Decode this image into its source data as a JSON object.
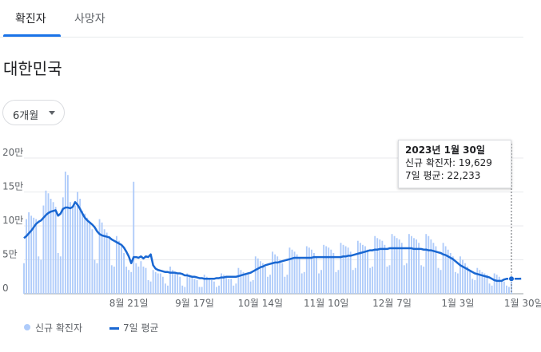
{
  "tabs": [
    {
      "label": "확진자",
      "active": true
    },
    {
      "label": "사망자",
      "active": false
    }
  ],
  "region": "대한민국",
  "period_select": {
    "selected": "6개월"
  },
  "tooltip": {
    "date": "2023년 1월 30일",
    "new_cases_line": "신규 확진자: 19,629",
    "avg_line": "7일 평균: 22,233"
  },
  "legend": {
    "new_cases": "신규 확진자",
    "avg": "7일 평균"
  },
  "colors": {
    "bar": "#aecbfa",
    "line": "#1967d2",
    "accent": "#1a73e8",
    "grid": "#e8eaed"
  },
  "chart_data": {
    "type": "bar",
    "ylim": [
      0,
      200000
    ],
    "y_ticks": [
      {
        "value": 0,
        "label": "0"
      },
      {
        "value": 50000,
        "label": "5만"
      },
      {
        "value": 100000,
        "label": "10만"
      },
      {
        "value": 150000,
        "label": "15만"
      },
      {
        "value": 200000,
        "label": "20만"
      }
    ],
    "x_ticks": [
      {
        "index": 43,
        "label": "8월 21일"
      },
      {
        "index": 70,
        "label": "9월 17일"
      },
      {
        "index": 97,
        "label": "10월 14일"
      },
      {
        "index": 124,
        "label": "11월 10일"
      },
      {
        "index": 151,
        "label": "12월 7일"
      },
      {
        "index": 178,
        "label": "1월 3일"
      },
      {
        "index": 205,
        "label": "1월 30일"
      }
    ],
    "series": [
      {
        "name": "신규 확진자",
        "kind": "bar",
        "values": [
          45000,
          110000,
          120000,
          115000,
          112000,
          110000,
          55000,
          50000,
          130000,
          152000,
          148000,
          140000,
          135000,
          128000,
          60000,
          55000,
          142000,
          180000,
          175000,
          135000,
          130000,
          130000,
          150000,
          140000,
          122000,
          118000,
          112000,
          105000,
          95000,
          50000,
          45000,
          110000,
          105000,
          95000,
          90000,
          85000,
          42000,
          40000,
          85000,
          78000,
          70000,
          60000,
          40000,
          35000,
          32000,
          165000,
          45000,
          40000,
          48000,
          40000,
          38000,
          20000,
          18000,
          35000,
          32000,
          30000,
          30000,
          25000,
          15000,
          12000,
          40000,
          35000,
          30000,
          28000,
          25000,
          12000,
          10000,
          30000,
          28000,
          25000,
          22000,
          20000,
          10000,
          10000,
          28000,
          25000,
          22000,
          20000,
          18000,
          10000,
          12000,
          30000,
          28000,
          25000,
          22000,
          22000,
          12000,
          15000,
          38000,
          35000,
          32000,
          30000,
          28000,
          18000,
          20000,
          55000,
          52000,
          48000,
          45000,
          40000,
          25000,
          28000,
          62000,
          58000,
          55000,
          50000,
          45000,
          25000,
          28000,
          68000,
          65000,
          62000,
          58000,
          52000,
          30000,
          32000,
          70000,
          68000,
          65000,
          60000,
          55000,
          30000,
          35000,
          72000,
          70000,
          68000,
          65000,
          60000,
          32000,
          35000,
          75000,
          72000,
          70000,
          68000,
          62000,
          35000,
          38000,
          78000,
          75000,
          72000,
          70000,
          65000,
          38000,
          40000,
          85000,
          82000,
          80000,
          78000,
          72000,
          40000,
          42000,
          88000,
          85000,
          82000,
          80000,
          75000,
          42000,
          45000,
          88000,
          85000,
          82000,
          80000,
          75000,
          42000,
          40000,
          88000,
          85000,
          80000,
          75000,
          70000,
          38000,
          35000,
          75000,
          70000,
          65000,
          60000,
          55000,
          32000,
          30000,
          55000,
          50000,
          45000,
          40000,
          35000,
          22000,
          20000,
          38000,
          35000,
          32000,
          30000,
          28000,
          15000,
          12000,
          30000,
          28000,
          25000,
          20000,
          18000,
          12000,
          10000,
          19629
        ]
      },
      {
        "name": "7일 평균",
        "kind": "line",
        "values": [
          82000,
          85000,
          89000,
          93000,
          98000,
          103000,
          106000,
          108000,
          112000,
          116000,
          119000,
          121000,
          122000,
          123000,
          115000,
          118000,
          125000,
          127000,
          127000,
          126000,
          128000,
          135000,
          131000,
          125000,
          118000,
          112000,
          108000,
          105000,
          102000,
          98000,
          92000,
          88000,
          86000,
          85000,
          84000,
          83000,
          80000,
          78000,
          76000,
          74000,
          72000,
          68000,
          62000,
          55000,
          45000,
          54000,
          54000,
          53000,
          55000,
          52000,
          55000,
          54000,
          58000,
          42000,
          37000,
          35000,
          34000,
          33000,
          32000,
          32000,
          31000,
          31000,
          31000,
          30000,
          30000,
          29000,
          27000,
          27000,
          26000,
          25000,
          25000,
          24000,
          23000,
          23000,
          22000,
          22000,
          22000,
          22000,
          22000,
          23000,
          23000,
          24000,
          24000,
          25000,
          25000,
          25000,
          25000,
          25000,
          26000,
          27000,
          28000,
          29000,
          30000,
          31000,
          33000,
          35000,
          37000,
          39000,
          40000,
          42000,
          43000,
          44000,
          45000,
          46000,
          46000,
          47000,
          48000,
          49000,
          50000,
          51000,
          52000,
          53000,
          53000,
          53000,
          53000,
          53000,
          53000,
          53000,
          53000,
          54000,
          54000,
          54000,
          54000,
          54000,
          54000,
          54000,
          54000,
          54000,
          54000,
          54000,
          54000,
          55000,
          55000,
          56000,
          56000,
          57000,
          58000,
          59000,
          60000,
          61000,
          62000,
          63000,
          64000,
          64000,
          65000,
          65000,
          66000,
          66000,
          66000,
          66000,
          67000,
          67000,
          67000,
          67000,
          67000,
          67000,
          67000,
          67000,
          67000,
          67000,
          66000,
          66000,
          66000,
          66000,
          65000,
          65000,
          64000,
          64000,
          63000,
          62000,
          61000,
          60000,
          58000,
          57000,
          55000,
          53000,
          51000,
          48000,
          45000,
          42000,
          40000,
          38000,
          36000,
          34000,
          32000,
          30000,
          29000,
          28000,
          27000,
          26000,
          25000,
          24000,
          22000,
          20000,
          19000,
          19000,
          19000,
          21000,
          22000,
          22000,
          22000,
          22000,
          22000,
          22000,
          22233
        ]
      }
    ]
  }
}
